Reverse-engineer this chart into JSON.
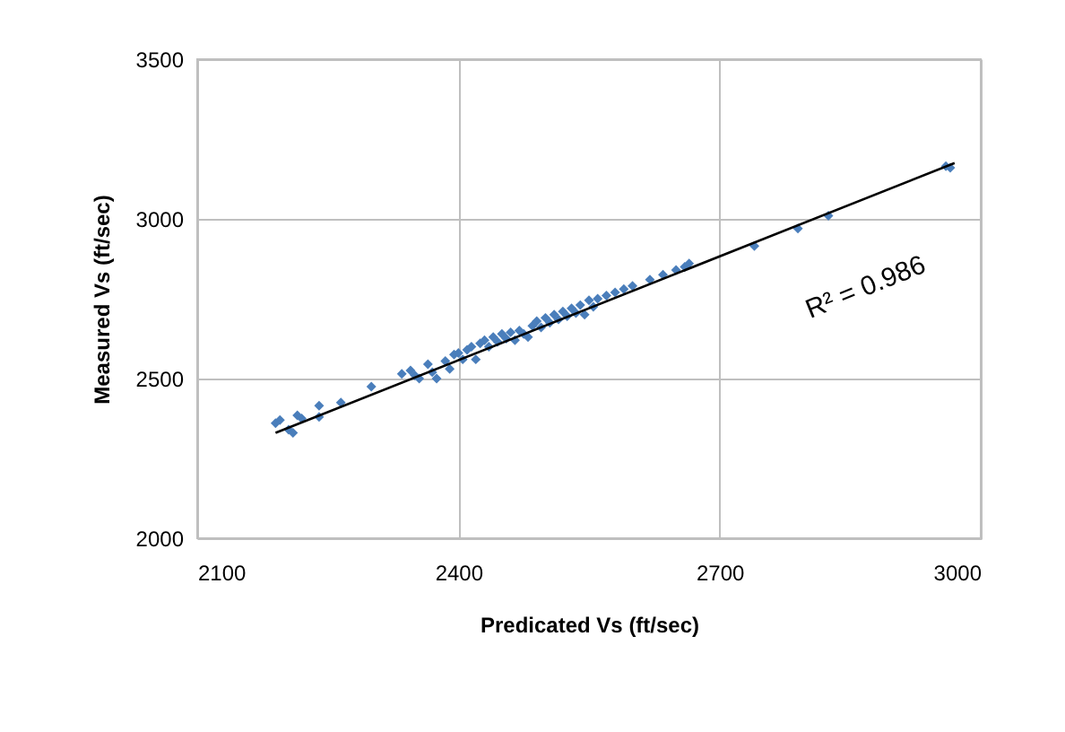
{
  "chart_data": {
    "type": "scatter",
    "xlabel": "Predicated Vs (ft/sec)",
    "ylabel": "Measured Vs (ft/sec)",
    "xlim": [
      2100,
      3000
    ],
    "ylim": [
      2000,
      3500
    ],
    "xticks": [
      2100,
      2400,
      2700,
      3000
    ],
    "yticks": [
      2000,
      2500,
      3000,
      3500
    ],
    "grid": true,
    "annotations": [
      "R² = 0.986"
    ],
    "series": [
      {
        "color": "#4a7ebb",
        "marker": "diamond",
        "x": [
          2190,
          2195,
          2205,
          2210,
          2215,
          2220,
          2240,
          2240,
          2265,
          2300,
          2335,
          2345,
          2350,
          2355,
          2365,
          2370,
          2375,
          2385,
          2390,
          2395,
          2400,
          2405,
          2410,
          2415,
          2420,
          2425,
          2430,
          2435,
          2440,
          2445,
          2450,
          2455,
          2460,
          2465,
          2470,
          2475,
          2480,
          2485,
          2490,
          2495,
          2500,
          2505,
          2510,
          2515,
          2520,
          2525,
          2530,
          2535,
          2540,
          2545,
          2550,
          2555,
          2560,
          2570,
          2580,
          2590,
          2600,
          2620,
          2635,
          2650,
          2660,
          2665,
          2740,
          2790,
          2825,
          2960,
          2965
        ],
        "values": [
          2360,
          2370,
          2340,
          2330,
          2385,
          2375,
          2380,
          2415,
          2425,
          2475,
          2515,
          2525,
          2510,
          2500,
          2545,
          2520,
          2500,
          2555,
          2530,
          2575,
          2580,
          2560,
          2590,
          2600,
          2560,
          2610,
          2620,
          2600,
          2630,
          2615,
          2640,
          2625,
          2645,
          2620,
          2650,
          2640,
          2630,
          2665,
          2680,
          2660,
          2690,
          2675,
          2700,
          2685,
          2710,
          2695,
          2720,
          2705,
          2730,
          2700,
          2745,
          2725,
          2750,
          2760,
          2770,
          2780,
          2790,
          2810,
          2825,
          2840,
          2850,
          2860,
          2915,
          2970,
          3010,
          3165,
          3160
        ]
      },
      {
        "type": "line",
        "color": "#000000",
        "x": [
          2190,
          2970
        ],
        "values": [
          2330,
          3175
        ],
        "marker": "none"
      }
    ]
  }
}
